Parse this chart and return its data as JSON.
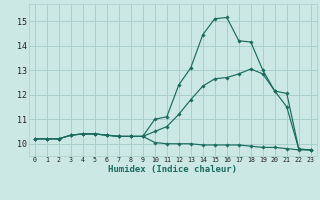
{
  "xlabel": "Humidex (Indice chaleur)",
  "xlim": [
    -0.5,
    23.5
  ],
  "ylim": [
    9.5,
    15.7
  ],
  "xticks": [
    0,
    1,
    2,
    3,
    4,
    5,
    6,
    7,
    8,
    9,
    10,
    11,
    12,
    13,
    14,
    15,
    16,
    17,
    18,
    19,
    20,
    21,
    22,
    23
  ],
  "yticks": [
    10,
    11,
    12,
    13,
    14,
    15
  ],
  "bg_color": "#cce8e4",
  "grid_color": "#aacfcc",
  "line_color": "#1a6b5e",
  "curve1_x": [
    0,
    1,
    2,
    3,
    4,
    5,
    6,
    7,
    8,
    9,
    10,
    11,
    12,
    13,
    14,
    15,
    16,
    17,
    18,
    19,
    20,
    21,
    22,
    23
  ],
  "curve1_y": [
    10.2,
    10.2,
    10.2,
    10.35,
    10.4,
    10.4,
    10.35,
    10.3,
    10.3,
    10.3,
    10.05,
    10.0,
    10.0,
    10.0,
    9.95,
    9.95,
    9.95,
    9.95,
    9.9,
    9.85,
    9.85,
    9.8,
    9.75,
    9.75
  ],
  "curve2_x": [
    0,
    1,
    2,
    3,
    4,
    5,
    6,
    7,
    8,
    9,
    10,
    11,
    12,
    13,
    14,
    15,
    16,
    17,
    18,
    19,
    20,
    21,
    22,
    23
  ],
  "curve2_y": [
    10.2,
    10.2,
    10.2,
    10.35,
    10.4,
    10.4,
    10.35,
    10.3,
    10.3,
    10.3,
    10.5,
    10.7,
    11.2,
    11.8,
    12.35,
    12.65,
    12.7,
    12.85,
    13.05,
    12.85,
    12.15,
    12.05,
    9.78,
    9.75
  ],
  "curve3_x": [
    0,
    1,
    2,
    3,
    4,
    5,
    6,
    7,
    8,
    9,
    10,
    11,
    12,
    13,
    14,
    15,
    16,
    17,
    18,
    19,
    20,
    21,
    22,
    23
  ],
  "curve3_y": [
    10.2,
    10.2,
    10.2,
    10.35,
    10.4,
    10.4,
    10.35,
    10.3,
    10.3,
    10.3,
    11.0,
    11.1,
    12.4,
    13.1,
    14.45,
    15.1,
    15.15,
    14.2,
    14.15,
    13.0,
    12.15,
    11.5,
    9.78,
    9.75
  ]
}
